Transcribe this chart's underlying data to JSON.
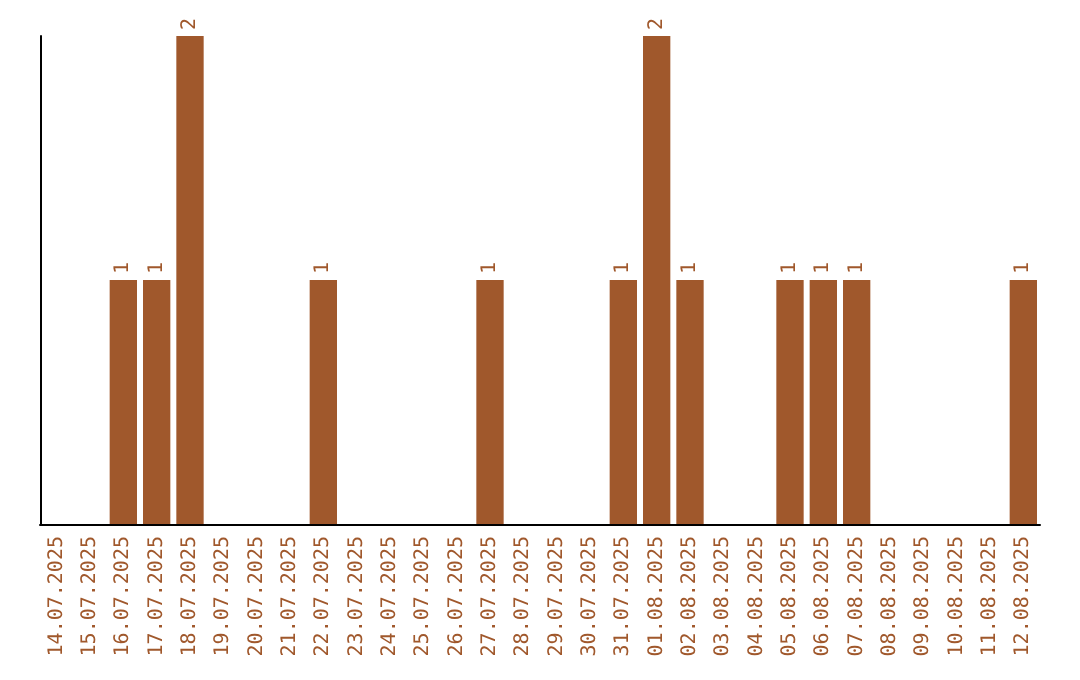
{
  "chart_data": {
    "type": "bar",
    "categories": [
      "14.07.2025",
      "15.07.2025",
      "16.07.2025",
      "17.07.2025",
      "18.07.2025",
      "19.07.2025",
      "20.07.2025",
      "21.07.2025",
      "22.07.2025",
      "23.07.2025",
      "24.07.2025",
      "25.07.2025",
      "26.07.2025",
      "27.07.2025",
      "28.07.2025",
      "29.07.2025",
      "30.07.2025",
      "31.07.2025",
      "01.08.2025",
      "02.08.2025",
      "03.08.2025",
      "04.08.2025",
      "05.08.2025",
      "06.08.2025",
      "07.08.2025",
      "08.08.2025",
      "09.08.2025",
      "10.08.2025",
      "11.08.2025",
      "12.08.2025"
    ],
    "values": [
      0,
      0,
      1,
      1,
      2,
      0,
      0,
      0,
      1,
      0,
      0,
      0,
      0,
      1,
      0,
      0,
      0,
      1,
      2,
      1,
      0,
      0,
      1,
      1,
      1,
      0,
      0,
      0,
      0,
      1
    ],
    "value_labels": [
      null,
      null,
      "1",
      "1",
      "2",
      null,
      null,
      null,
      "1",
      null,
      null,
      null,
      null,
      "1",
      null,
      null,
      null,
      "1",
      "2",
      "1",
      null,
      null,
      "1",
      "1",
      "1",
      null,
      null,
      null,
      null,
      "1"
    ],
    "color": "#a0582c",
    "tick_labels": "x"
  }
}
